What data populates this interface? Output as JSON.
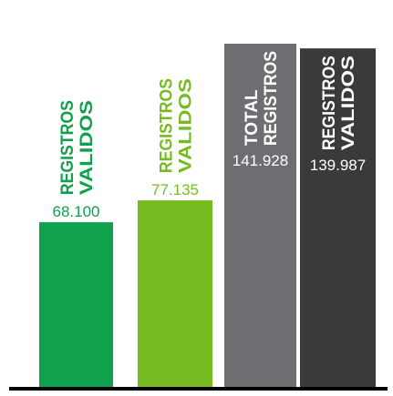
{
  "chart_data": {
    "type": "bar",
    "bars": [
      {
        "label_lines": [
          "REGISTROS",
          "VALIDOS"
        ],
        "value": 68100,
        "value_text": "68.100",
        "color": "#0fa14b",
        "label_color": "#0fa14b",
        "value_color": "#0fa14b",
        "placement": "above"
      },
      {
        "label_lines": [
          "REGISTROS",
          "VALIDOS"
        ],
        "value": 77135,
        "value_text": "77.135",
        "color": "#76bc21",
        "label_color": "#76bc21",
        "value_color": "#76bc21",
        "placement": "above"
      },
      {
        "label_lines": [
          "TOTAL",
          "REGISTROS"
        ],
        "value": 141928,
        "value_text": "141.928",
        "color": "#6d6e71",
        "label_color": "#ffffff",
        "value_color": "#ffffff",
        "placement": "inside"
      },
      {
        "label_lines": [
          "REGISTROS",
          "VALIDOS"
        ],
        "value": 139987,
        "value_text": "139.987",
        "color": "#3a3a3b",
        "label_color": "#ffffff",
        "value_color": "#ffffff",
        "placement": "inside"
      }
    ],
    "ylim": [
      0,
      160000
    ],
    "baseline_color": "#000000",
    "grid": false,
    "legend": "none"
  }
}
